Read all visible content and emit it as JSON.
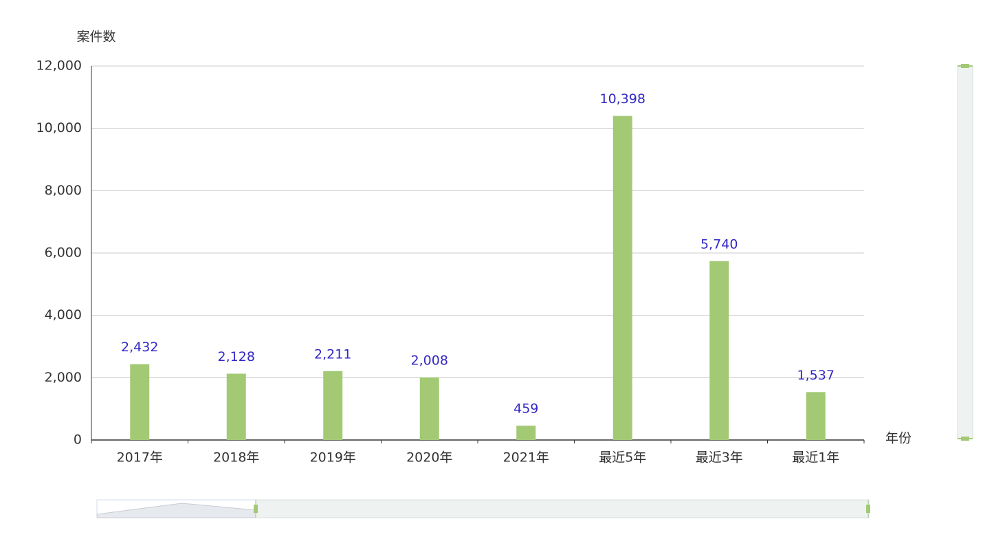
{
  "chart_data": {
    "type": "bar",
    "y_axis_label": "案件数",
    "x_axis_label": "年份",
    "categories": [
      "2017年",
      "2018年",
      "2019年",
      "2020年",
      "2021年",
      "最近5年",
      "最近3年",
      "最近1年"
    ],
    "values": [
      2432,
      2128,
      2211,
      2008,
      459,
      10398,
      5740,
      1537
    ],
    "value_labels": [
      "2,432",
      "2,128",
      "2,211",
      "2,008",
      "459",
      "10,398",
      "5,740",
      "1,537"
    ],
    "color": "#a3c975",
    "ylim": [
      0,
      12000
    ],
    "yticks": [
      0,
      {
        "value": 2000,
        "label": "2,000"
      },
      {
        "value": 4000,
        "label": "4,000"
      },
      {
        "value": 6000,
        "label": "6,000"
      },
      {
        "value": 8000,
        "label": "8,000"
      },
      {
        "value": 10000,
        "label": "10,000"
      },
      {
        "value": 12000,
        "label": "12,000"
      }
    ],
    "grid": true
  }
}
